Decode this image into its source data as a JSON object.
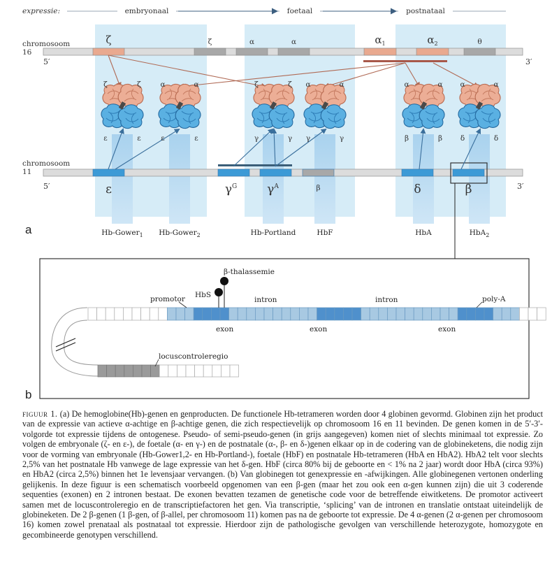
{
  "panel_a": {
    "label": "a",
    "expression": {
      "label": "expressie:",
      "stages": [
        "embryonaal",
        "foetaal",
        "postnataal"
      ]
    },
    "chr16": {
      "label": "chromosoom",
      "number": "16",
      "end5": "5′",
      "end3": "3′",
      "genes": [
        {
          "name": "ζ",
          "type": "functional"
        },
        {
          "name": "ζ",
          "type": "pseudo"
        },
        {
          "name": "α",
          "type": "pseudo"
        },
        {
          "name": "α",
          "type": "pseudo"
        },
        {
          "name": "α",
          "sub": "1",
          "type": "functional"
        },
        {
          "name": "α",
          "sub": "2",
          "type": "functional"
        },
        {
          "name": "θ",
          "type": "pseudo"
        }
      ]
    },
    "chr11": {
      "label": "chromosoom",
      "number": "11",
      "end5": "5′",
      "end3": "3′",
      "genes": [
        {
          "name": "ε",
          "type": "functional"
        },
        {
          "name": "γ",
          "sup": "G",
          "type": "functional"
        },
        {
          "name": "γ",
          "sup": "A",
          "type": "functional"
        },
        {
          "name": "β",
          "type": "pseudo"
        },
        {
          "name": "δ",
          "type": "functional"
        },
        {
          "name": "β",
          "type": "functional"
        }
      ]
    },
    "tetramers": [
      {
        "top": [
          "ζ",
          "ζ"
        ],
        "bottom": [
          "ε",
          "ε"
        ],
        "name": "Hb-Gower",
        "sub": "1"
      },
      {
        "top": [
          "α",
          "α"
        ],
        "bottom": [
          "ε",
          "ε"
        ],
        "name": "Hb-Gower",
        "sub": "2"
      },
      {
        "top": [
          "ζ",
          "ζ"
        ],
        "bottom": [
          "γ",
          "γ"
        ],
        "name": "Hb-Portland",
        "sub": ""
      },
      {
        "top": [
          "α",
          "α"
        ],
        "bottom": [
          "γ",
          "γ"
        ],
        "name": "HbF",
        "sub": ""
      },
      {
        "top": [
          "α",
          "α"
        ],
        "bottom": [
          "β",
          "β"
        ],
        "name": "HbA",
        "sub": ""
      },
      {
        "top": [
          "α",
          "α"
        ],
        "bottom": [
          "δ",
          "δ"
        ],
        "name": "HbA",
        "sub": "2"
      }
    ]
  },
  "panel_b": {
    "label": "b",
    "labels": {
      "b_thal": "β-thalassemie",
      "hbs": "HbS",
      "promotor": "promotor",
      "intron1": "intron",
      "intron2": "intron",
      "polyA": "poly-A",
      "exon1": "exon",
      "exon2": "exon",
      "exon3": "exon",
      "lcr": "locuscontroleregio"
    }
  },
  "caption": {
    "lead": "figuur 1.",
    "text": " (a) De hemoglobine(Hb)-genen en genproducten. De functionele Hb-tetrameren worden door 4 globinen gevormd. Globinen zijn het product van de expressie van actieve α-achtige en β-achtige genen, die zich respectievelijk op chromosoom 16 en 11 bevinden. De genen komen in de 5′-3′-volgorde tot expressie tijdens de ontogenese. Pseudo- of semi-pseudo-genen (in grijs aangegeven) komen niet of slechts minimaal tot expressie. Zo volgen de embryonale (ζ- en ε-), de foetale (α- en γ-) en de postnatale (α-, β- en δ-)genen elkaar op in de codering van de globineketens, die nodig zijn voor de vorming van embryonale (Hb-Gower1,2- en Hb-Portland-), foetale (HbF) en postnatale Hb-tetrameren (HbA en HbA2). HbA2 telt voor slechts 2,5% van het postnatale Hb vanwege de lage expressie van het δ-gen. HbF (circa 80% bij de geboorte en < 1% na 2 jaar) wordt door HbA (circa 93%) en HbA2 (circa 2,5%) binnen het 1e levensjaar vervangen. (b) Van globinegen tot genexpressie en -afwijkingen. Alle globinegenen vertonen onderling gelijkenis. In deze figuur is een schematisch voorbeeld opgenomen van een β-gen (maar het zou ook een α-gen kunnen zijn) die uit 3 coderende sequenties (exonen) en 2 intronen bestaat. De exonen bevatten tezamen de genetische code voor de betreffende eiwitketens. De promotor activeert samen met de locuscontroleregio en de transcriptiefactoren het gen. Via transcriptie, ‘splicing’ van de intronen en translatie ontstaat uiteindelijk de globineketen. De 2 β-genen (1 β-gen, of β-allel, per chromosoom 11) komen pas na de geboorte tot expressie. De 4 α-genen (2 α-genen per chromosoom 16) komen zowel prenataal als postnataal tot expressie. Hierdoor zijn de pathologische gevolgen van verschillende heterozygote, homozygote en gecombineerde genotypen verschillend."
  },
  "colors": {
    "stage_bg": "#d6ecf7",
    "chromosome": "#dcdcdc",
    "alpha_gene": "#e9a98f",
    "beta_gene": "#3c9ad6",
    "pseudo_gene": "#a8a8a8",
    "arrow_alpha": "#b06a55",
    "arrow_beta": "#3a6f9c",
    "exon": "#4f90cc",
    "noncoding": "#a8c9e2",
    "lcr": "#9a9a9a"
  }
}
